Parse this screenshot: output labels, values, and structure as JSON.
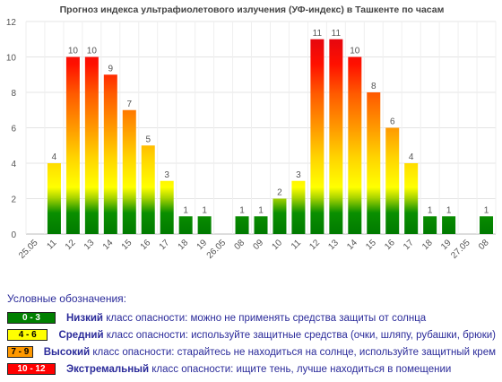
{
  "chart_data": {
    "type": "bar",
    "title": "Прогноз индекса ультрафиолетового излучения (УФ-индекс) в Ташкенте по часам",
    "xlabel": "",
    "ylabel": "",
    "ylim": [
      0,
      12
    ],
    "yticks": [
      "0",
      "2",
      "4",
      "6",
      "8",
      "10",
      "12"
    ],
    "grid": true,
    "categories": [
      "25.05",
      "11",
      "12",
      "13",
      "14",
      "15",
      "16",
      "17",
      "18",
      "19",
      "26.05",
      "08",
      "09",
      "10",
      "11",
      "12",
      "13",
      "14",
      "15",
      "16",
      "17",
      "18",
      "19",
      "27.05",
      "08"
    ],
    "values": [
      null,
      4,
      10,
      10,
      9,
      7,
      5,
      3,
      1,
      1,
      null,
      1,
      1,
      2,
      3,
      11,
      11,
      10,
      8,
      6,
      4,
      1,
      1,
      null,
      1
    ],
    "data_labels": [
      "",
      "4",
      "10",
      "10",
      "9",
      "7",
      "5",
      "3",
      "1",
      "1",
      "",
      "1",
      "1",
      "2",
      "3",
      "11",
      "11",
      "10",
      "8",
      "6",
      "4",
      "1",
      "1",
      "",
      "1"
    ]
  },
  "legend": {
    "title": "Условные обозначения:",
    "items": [
      {
        "range": "0 - 3",
        "color": "#008000",
        "text_color": "#ffffff",
        "bold": "Низкий",
        "text": " класс опасности: можно не применять средства защиты от солнца"
      },
      {
        "range": "4 - 6",
        "color": "#ffff00",
        "text_color": "#000000",
        "bold": "Средний",
        "text": " класс опасности: используйте защитные средства (очки, шляпу, рубашки, брюки)"
      },
      {
        "range": "7 - 9",
        "color": "#ff9900",
        "text_color": "#000000",
        "bold": "Высокий",
        "text": " класс опасности: старайтесь не находиться на солнце, используйте защитный крем"
      },
      {
        "range": "10 - 12",
        "color": "#ff0000",
        "text_color": "#ffffff",
        "bold": "Экстремальный",
        "text": " класс опасности: ищите тень, лучше находиться в помещении"
      }
    ]
  }
}
